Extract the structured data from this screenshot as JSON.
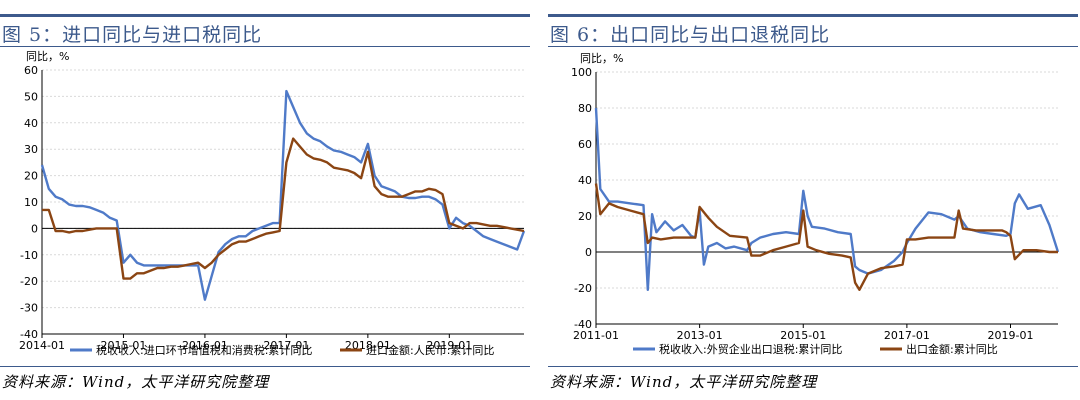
{
  "colors": {
    "title_bar": "#3d5a8c",
    "title_text": "#3d5a8c",
    "series_blue": "#4f7ac8",
    "series_brown": "#8b4513",
    "grid": "#d9d9d9"
  },
  "figures": [
    {
      "title": "图 5：进口同比与进口税同比",
      "source": "资料来源：Wind，太平洋研究院整理"
    },
    {
      "title": "图 6：出口同比与出口退税同比",
      "source": "资料来源：Wind，太平洋研究院整理"
    }
  ],
  "chart_data": [
    {
      "type": "line",
      "unit_label": "同比，%",
      "ylim": [
        -40,
        60
      ],
      "yticks": [
        -40,
        -30,
        -20,
        -10,
        0,
        10,
        20,
        30,
        40,
        50,
        60
      ],
      "xlim": [
        "2014-01",
        "2019-12"
      ],
      "xticks": [
        "2014-01",
        "2015-01",
        "2016-01",
        "2017-01",
        "2018-01",
        "2019-01"
      ],
      "grid": true,
      "legend_position": "bottom",
      "series": [
        {
          "name": "税收收入:进口环节增值税和消费税:累计同比",
          "color": "#4f7ac8",
          "points": [
            [
              "2014-01",
              24
            ],
            [
              "2014-02",
              15
            ],
            [
              "2014-03",
              12
            ],
            [
              "2014-04",
              11
            ],
            [
              "2014-05",
              9
            ],
            [
              "2014-06",
              8.5
            ],
            [
              "2014-07",
              8.5
            ],
            [
              "2014-08",
              8
            ],
            [
              "2014-09",
              7
            ],
            [
              "2014-10",
              6
            ],
            [
              "2014-11",
              4
            ],
            [
              "2014-12",
              3
            ],
            [
              "2015-01",
              -13
            ],
            [
              "2015-02",
              -10
            ],
            [
              "2015-03",
              -13
            ],
            [
              "2015-04",
              -14
            ],
            [
              "2015-05",
              -14
            ],
            [
              "2015-06",
              -14
            ],
            [
              "2015-07",
              -14
            ],
            [
              "2015-08",
              -14
            ],
            [
              "2015-09",
              -14
            ],
            [
              "2015-10",
              -14
            ],
            [
              "2015-11",
              -14
            ],
            [
              "2015-12",
              -14
            ],
            [
              "2016-01",
              -27
            ],
            [
              "2016-02",
              -18
            ],
            [
              "2016-03",
              -9
            ],
            [
              "2016-04",
              -6
            ],
            [
              "2016-05",
              -4
            ],
            [
              "2016-06",
              -3
            ],
            [
              "2016-07",
              -3
            ],
            [
              "2016-08",
              -1
            ],
            [
              "2016-09",
              0
            ],
            [
              "2016-10",
              1
            ],
            [
              "2016-11",
              2
            ],
            [
              "2016-12",
              2
            ],
            [
              "2017-01",
              52
            ],
            [
              "2017-02",
              46
            ],
            [
              "2017-03",
              40
            ],
            [
              "2017-04",
              36
            ],
            [
              "2017-05",
              34
            ],
            [
              "2017-06",
              33
            ],
            [
              "2017-07",
              31
            ],
            [
              "2017-08",
              29.5
            ],
            [
              "2017-09",
              29
            ],
            [
              "2017-10",
              28
            ],
            [
              "2017-11",
              27
            ],
            [
              "2017-12",
              25
            ],
            [
              "2018-01",
              32
            ],
            [
              "2018-02",
              20
            ],
            [
              "2018-03",
              16
            ],
            [
              "2018-04",
              15
            ],
            [
              "2018-05",
              14
            ],
            [
              "2018-06",
              12
            ],
            [
              "2018-07",
              11.5
            ],
            [
              "2018-08",
              11.5
            ],
            [
              "2018-09",
              12
            ],
            [
              "2018-10",
              12
            ],
            [
              "2018-11",
              11
            ],
            [
              "2018-12",
              9
            ],
            [
              "2019-01",
              0
            ],
            [
              "2019-02",
              4
            ],
            [
              "2019-03",
              2
            ],
            [
              "2019-04",
              1
            ],
            [
              "2019-05",
              -1
            ],
            [
              "2019-06",
              -3
            ],
            [
              "2019-07",
              -4
            ],
            [
              "2019-08",
              -5
            ],
            [
              "2019-09",
              -6
            ],
            [
              "2019-10",
              -7
            ],
            [
              "2019-11",
              -8
            ],
            [
              "2019-12",
              -1
            ]
          ]
        },
        {
          "name": "进口金额:人民币:累计同比",
          "color": "#8b4513",
          "points": [
            [
              "2014-01",
              7
            ],
            [
              "2014-02",
              7
            ],
            [
              "2014-03",
              -1
            ],
            [
              "2014-04",
              -1
            ],
            [
              "2014-05",
              -1.5
            ],
            [
              "2014-06",
              -1
            ],
            [
              "2014-07",
              -1
            ],
            [
              "2014-08",
              -0.5
            ],
            [
              "2014-09",
              0
            ],
            [
              "2014-10",
              0
            ],
            [
              "2014-11",
              0
            ],
            [
              "2014-12",
              0
            ],
            [
              "2015-01",
              -19
            ],
            [
              "2015-02",
              -19
            ],
            [
              "2015-03",
              -17
            ],
            [
              "2015-04",
              -17
            ],
            [
              "2015-05",
              -16
            ],
            [
              "2015-06",
              -15
            ],
            [
              "2015-07",
              -15
            ],
            [
              "2015-08",
              -14.5
            ],
            [
              "2015-09",
              -14.5
            ],
            [
              "2015-10",
              -14
            ],
            [
              "2015-11",
              -13.5
            ],
            [
              "2015-12",
              -13
            ],
            [
              "2016-01",
              -15
            ],
            [
              "2016-02",
              -13
            ],
            [
              "2016-03",
              -10
            ],
            [
              "2016-04",
              -8
            ],
            [
              "2016-05",
              -6
            ],
            [
              "2016-06",
              -5
            ],
            [
              "2016-07",
              -5
            ],
            [
              "2016-08",
              -4
            ],
            [
              "2016-09",
              -3
            ],
            [
              "2016-10",
              -2
            ],
            [
              "2016-11",
              -1.5
            ],
            [
              "2016-12",
              -1
            ],
            [
              "2017-01",
              25
            ],
            [
              "2017-02",
              34
            ],
            [
              "2017-03",
              31
            ],
            [
              "2017-04",
              28
            ],
            [
              "2017-05",
              26.5
            ],
            [
              "2017-06",
              26
            ],
            [
              "2017-07",
              25
            ],
            [
              "2017-08",
              23
            ],
            [
              "2017-09",
              22.5
            ],
            [
              "2017-10",
              22
            ],
            [
              "2017-11",
              21
            ],
            [
              "2017-12",
              19
            ],
            [
              "2018-01",
              29
            ],
            [
              "2018-02",
              16
            ],
            [
              "2018-03",
              13
            ],
            [
              "2018-04",
              12
            ],
            [
              "2018-05",
              12
            ],
            [
              "2018-06",
              12
            ],
            [
              "2018-07",
              13
            ],
            [
              "2018-08",
              14
            ],
            [
              "2018-09",
              14
            ],
            [
              "2018-10",
              15
            ],
            [
              "2018-11",
              14.5
            ],
            [
              "2018-12",
              13
            ],
            [
              "2019-01",
              2
            ],
            [
              "2019-02",
              1
            ],
            [
              "2019-03",
              0
            ],
            [
              "2019-04",
              2
            ],
            [
              "2019-05",
              2
            ],
            [
              "2019-06",
              1.5
            ],
            [
              "2019-07",
              1
            ],
            [
              "2019-08",
              1
            ],
            [
              "2019-09",
              0.5
            ],
            [
              "2019-10",
              0
            ],
            [
              "2019-11",
              -0.5
            ],
            [
              "2019-12",
              -1
            ]
          ]
        }
      ]
    },
    {
      "type": "line",
      "unit_label": "同比，%",
      "ylim": [
        -40,
        100
      ],
      "yticks": [
        -40,
        -20,
        0,
        20,
        40,
        60,
        80,
        100
      ],
      "xlim": [
        "2011-01",
        "2019-12"
      ],
      "xticks": [
        "2011-01",
        "2013-01",
        "2015-01",
        "2017-01",
        "2019-01"
      ],
      "grid": true,
      "legend_position": "bottom",
      "series": [
        {
          "name": "税收收入:外贸企业出口退税:累计同比",
          "color": "#4f7ac8",
          "points": [
            [
              "2011-01",
              80
            ],
            [
              "2011-02",
              35
            ],
            [
              "2011-04",
              28
            ],
            [
              "2011-06",
              28
            ],
            [
              "2011-09",
              27
            ],
            [
              "2011-12",
              26
            ],
            [
              "2012-01",
              -21
            ],
            [
              "2012-02",
              21
            ],
            [
              "2012-03",
              11
            ],
            [
              "2012-05",
              17
            ],
            [
              "2012-07",
              12
            ],
            [
              "2012-09",
              15
            ],
            [
              "2012-11",
              9
            ],
            [
              "2012-12",
              8
            ],
            [
              "2013-01",
              23
            ],
            [
              "2013-02",
              -7
            ],
            [
              "2013-03",
              3
            ],
            [
              "2013-05",
              5
            ],
            [
              "2013-07",
              2
            ],
            [
              "2013-09",
              3
            ],
            [
              "2013-12",
              1
            ],
            [
              "2014-01",
              5
            ],
            [
              "2014-03",
              8
            ],
            [
              "2014-06",
              10
            ],
            [
              "2014-09",
              11
            ],
            [
              "2014-12",
              10
            ],
            [
              "2015-01",
              34
            ],
            [
              "2015-02",
              20
            ],
            [
              "2015-03",
              14
            ],
            [
              "2015-06",
              13
            ],
            [
              "2015-09",
              11
            ],
            [
              "2015-12",
              10
            ],
            [
              "2016-01",
              -8
            ],
            [
              "2016-02",
              -10
            ],
            [
              "2016-04",
              -12
            ],
            [
              "2016-07",
              -10
            ],
            [
              "2016-10",
              -5
            ],
            [
              "2016-12",
              0
            ],
            [
              "2017-01",
              5
            ],
            [
              "2017-03",
              13
            ],
            [
              "2017-06",
              22
            ],
            [
              "2017-09",
              21
            ],
            [
              "2017-12",
              18
            ],
            [
              "2018-01",
              20
            ],
            [
              "2018-03",
              13
            ],
            [
              "2018-06",
              11
            ],
            [
              "2018-09",
              10
            ],
            [
              "2018-12",
              9
            ],
            [
              "2019-01",
              10
            ],
            [
              "2019-02",
              27
            ],
            [
              "2019-03",
              32
            ],
            [
              "2019-05",
              24
            ],
            [
              "2019-08",
              26
            ],
            [
              "2019-10",
              15
            ],
            [
              "2019-12",
              0
            ]
          ]
        },
        {
          "name": "出口金额:累计同比",
          "color": "#8b4513",
          "points": [
            [
              "2011-01",
              38
            ],
            [
              "2011-02",
              21
            ],
            [
              "2011-04",
              27
            ],
            [
              "2011-06",
              25
            ],
            [
              "2011-09",
              23
            ],
            [
              "2011-12",
              21
            ],
            [
              "2012-01",
              5
            ],
            [
              "2012-02",
              8
            ],
            [
              "2012-04",
              7
            ],
            [
              "2012-07",
              8
            ],
            [
              "2012-10",
              8
            ],
            [
              "2012-12",
              8
            ],
            [
              "2013-01",
              25
            ],
            [
              "2013-03",
              19
            ],
            [
              "2013-05",
              14
            ],
            [
              "2013-08",
              9
            ],
            [
              "2013-12",
              8
            ],
            [
              "2014-01",
              -2
            ],
            [
              "2014-03",
              -2
            ],
            [
              "2014-06",
              1
            ],
            [
              "2014-09",
              3
            ],
            [
              "2014-12",
              5
            ],
            [
              "2015-01",
              23
            ],
            [
              "2015-02",
              3
            ],
            [
              "2015-04",
              1
            ],
            [
              "2015-07",
              -1
            ],
            [
              "2015-10",
              -2
            ],
            [
              "2015-12",
              -3
            ],
            [
              "2016-01",
              -17
            ],
            [
              "2016-02",
              -21
            ],
            [
              "2016-04",
              -12
            ],
            [
              "2016-07",
              -9
            ],
            [
              "2016-10",
              -8
            ],
            [
              "2016-12",
              -7
            ],
            [
              "2017-01",
              7
            ],
            [
              "2017-03",
              7
            ],
            [
              "2017-06",
              8
            ],
            [
              "2017-09",
              8
            ],
            [
              "2017-12",
              8
            ],
            [
              "2018-01",
              23
            ],
            [
              "2018-02",
              13
            ],
            [
              "2018-05",
              12
            ],
            [
              "2018-08",
              12
            ],
            [
              "2018-11",
              12
            ],
            [
              "2018-12",
              11
            ],
            [
              "2019-01",
              9
            ],
            [
              "2019-02",
              -4
            ],
            [
              "2019-04",
              1
            ],
            [
              "2019-07",
              1
            ],
            [
              "2019-10",
              0
            ],
            [
              "2019-12",
              0
            ]
          ]
        }
      ]
    }
  ]
}
